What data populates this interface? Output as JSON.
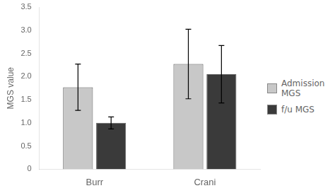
{
  "chart_data": {
    "type": "bar",
    "categories": [
      "Burr",
      "Crani"
    ],
    "series": [
      {
        "name": "Admission\nMGS",
        "color": "#c8c8c8",
        "values": [
          1.77,
          2.27
        ],
        "errors": [
          0.5,
          0.75
        ]
      },
      {
        "name": "f/u MGS",
        "color": "#3a3a3a",
        "values": [
          1.0,
          2.05
        ],
        "errors": [
          0.13,
          0.62
        ]
      }
    ],
    "ylabel": "MGS value",
    "ylim": [
      0,
      3.5
    ],
    "yticks": [
      0,
      0.5,
      {
        "value": 1.0,
        "label": "1.0"
      },
      1.5,
      {
        "value": 2.0,
        "label": "2.0"
      },
      2.5,
      {
        "value": 3.0,
        "label": "3.0"
      },
      3.5
    ],
    "grid": false,
    "legend": "right"
  }
}
